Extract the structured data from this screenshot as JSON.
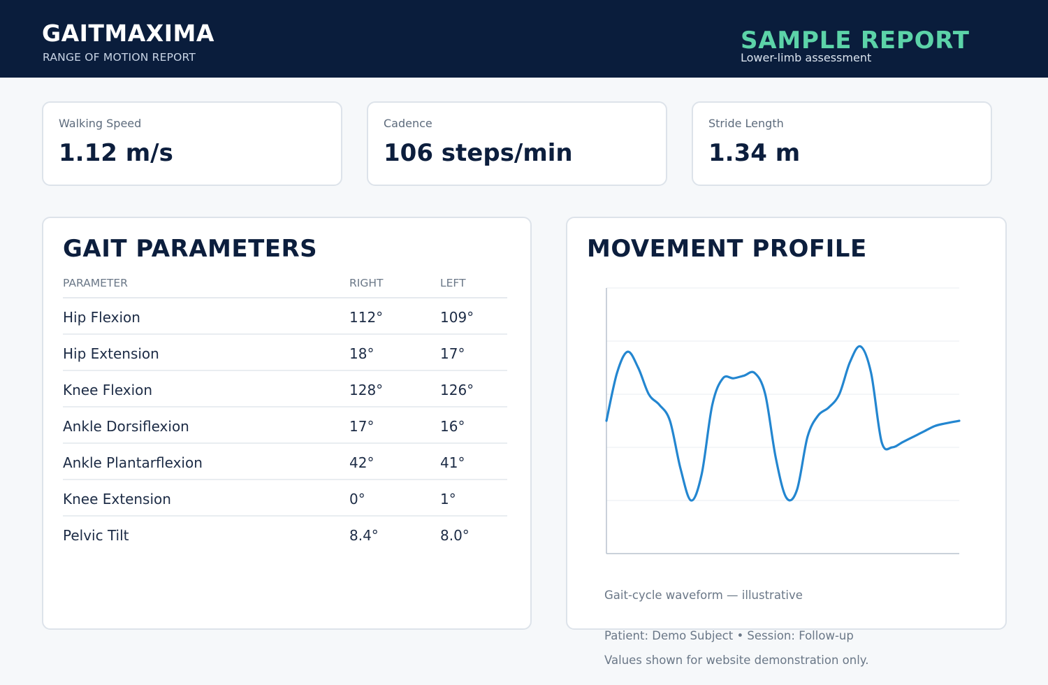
{
  "header": {
    "brand": "GAITMAXIMA",
    "subtitle": "RANGE OF MOTION REPORT",
    "report_title": "SAMPLE REPORT",
    "report_subtitle": "Lower-limb assessment"
  },
  "metrics": [
    {
      "label": "Walking Speed",
      "value": "1.12 m/s"
    },
    {
      "label": "Cadence",
      "value": "106 steps/min"
    },
    {
      "label": "Stride Length",
      "value": "1.34 m"
    }
  ],
  "gait_parameters": {
    "title": "GAIT PARAMETERS",
    "columns": [
      "PARAMETER",
      "RIGHT",
      "LEFT"
    ],
    "rows": [
      {
        "parameter": "Hip Flexion",
        "right": "112°",
        "left": "109°"
      },
      {
        "parameter": "Hip Extension",
        "right": "18°",
        "left": "17°"
      },
      {
        "parameter": "Knee Flexion",
        "right": "128°",
        "left": "126°"
      },
      {
        "parameter": "Ankle Dorsiflexion",
        "right": "17°",
        "left": "16°"
      },
      {
        "parameter": "Ankle Plantarflexion",
        "right": "42°",
        "left": "41°"
      },
      {
        "parameter": "Knee Extension",
        "right": "0°",
        "left": "1°"
      },
      {
        "parameter": "Pelvic Tilt",
        "right": "8.4°",
        "left": "8.0°"
      }
    ]
  },
  "movement_profile": {
    "title": "MOVEMENT PROFILE",
    "caption": "Gait-cycle waveform — illustrative"
  },
  "chart_data": {
    "type": "line",
    "title": "",
    "xlabel": "",
    "ylabel": "",
    "xlim": [
      0,
      100
    ],
    "ylim": [
      0,
      5
    ],
    "grid": true,
    "line_color": "#2386d0",
    "series": [
      {
        "x": [
          0,
          3,
          6,
          9,
          12,
          15,
          18,
          21,
          24,
          27,
          30,
          33,
          36,
          39,
          42,
          45,
          48,
          51,
          54,
          57,
          60,
          63,
          66,
          69,
          72,
          75,
          78,
          81,
          84,
          87,
          90,
          93,
          96,
          100
        ],
        "y": [
          2.5,
          3.4,
          3.8,
          3.5,
          3.0,
          2.8,
          2.5,
          1.6,
          1.0,
          1.5,
          2.8,
          3.3,
          3.3,
          3.35,
          3.4,
          3.0,
          1.8,
          1.05,
          1.2,
          2.2,
          2.6,
          2.75,
          3.0,
          3.6,
          3.9,
          3.4,
          2.1,
          2.0,
          2.1,
          2.2,
          2.3,
          2.4,
          2.45,
          2.5
        ]
      }
    ]
  },
  "footer": {
    "patient_line": "Patient: Demo Subject  •  Session: Follow-up",
    "disclaimer": "Values shown for website demonstration only."
  }
}
